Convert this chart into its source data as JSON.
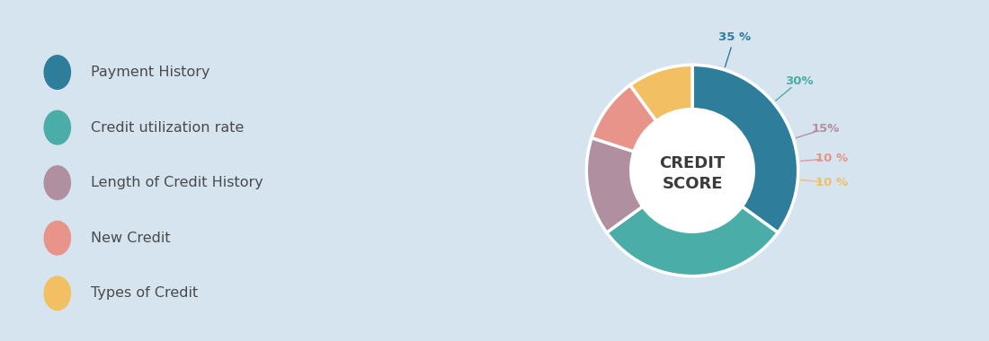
{
  "slices": [
    35,
    30,
    15,
    10,
    10
  ],
  "labels": [
    "Payment History",
    "Credit utilization rate",
    "Length of Credit History",
    "New Credit",
    "Types of Credit"
  ],
  "colors": [
    "#2e7d9b",
    "#4aada8",
    "#b08fa0",
    "#e8948a",
    "#f2c063"
  ],
  "pct_labels": [
    "35 %",
    "30%",
    "15%",
    "10 %",
    "10 %"
  ],
  "pct_label_colors": [
    "#2e7d9b",
    "#4aada8",
    "#b08fa0",
    "#e8948a",
    "#f2c063"
  ],
  "center_text_line1": "CREDIT",
  "center_text_line2": "SCORE",
  "center_text_color": "#3a3a3a",
  "background_color": "#d6e4ef",
  "figure_size": [
    11.0,
    3.8
  ],
  "dpi": 100,
  "legend_labels": [
    "Payment History",
    "Credit utilization rate",
    "Length of Credit History",
    "New Credit",
    "Types of Credit"
  ],
  "legend_colors": [
    "#2e7d9b",
    "#4aada8",
    "#b08fa0",
    "#e8948a",
    "#f2c063"
  ],
  "startangle": 90,
  "donut_width": 0.42
}
